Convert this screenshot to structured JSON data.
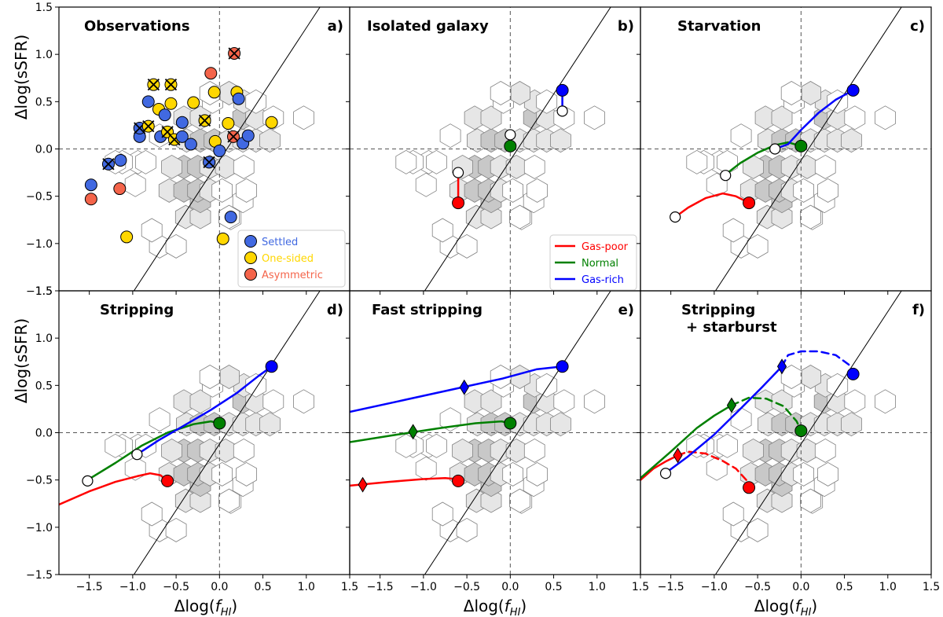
{
  "figure": {
    "ylabel": "Δlog(sSFR)",
    "xlabel_main": "Δlog(",
    "xlabel_f": "f",
    "xlabel_sub": "HI",
    "xlabel_close": ")"
  },
  "colors": {
    "settled": "#4169e1",
    "one_sided": "#ffd700",
    "asymmetric": "#f4644a",
    "gas_poor": "#ff0000",
    "normal": "#008000",
    "gas_rich": "#0000ff",
    "hex_edge": "#808080",
    "one_to_one_line": "#000000"
  },
  "chart_data": {
    "type": "scatter",
    "axes": {
      "xlim": [
        -1.85,
        1.5
      ],
      "ylim": [
        -1.5,
        1.5
      ],
      "xticks": [
        -1.5,
        -1.0,
        -0.5,
        0.0,
        0.5,
        1.0,
        1.5
      ],
      "yticks": [
        -1.5,
        -1.0,
        -0.5,
        0.0,
        0.5,
        1.0,
        1.5
      ]
    },
    "reference_lines": {
      "vertical_dashed_x": 0.0,
      "horizontal_dashed_y": 0.0,
      "diagonal": {
        "y_at_x0": -0.12,
        "slope": 1.4
      }
    },
    "hexbin_density": [
      {
        "x": -0.69,
        "y": -1.03,
        "s": 0
      },
      {
        "x": -0.5,
        "y": -1.03,
        "s": 0
      },
      {
        "x": 0.13,
        "y": -0.73,
        "s": 0
      },
      {
        "x": -0.78,
        "y": -0.86,
        "s": 0
      },
      {
        "x": -0.97,
        "y": -0.38,
        "s": 0
      },
      {
        "x": -0.39,
        "y": -0.72,
        "s": 1
      },
      {
        "x": -0.22,
        "y": -0.72,
        "s": 1
      },
      {
        "x": 0.11,
        "y": -0.72,
        "s": 0
      },
      {
        "x": -0.22,
        "y": -0.55,
        "s": 2
      },
      {
        "x": 0.27,
        "y": -0.55,
        "s": 0
      },
      {
        "x": -0.58,
        "y": -0.44,
        "s": 1
      },
      {
        "x": -0.41,
        "y": -0.44,
        "s": 2
      },
      {
        "x": -0.25,
        "y": -0.44,
        "s": 2
      },
      {
        "x": -0.11,
        "y": -0.44,
        "s": 1
      },
      {
        "x": 0.03,
        "y": -0.44,
        "s": 0
      },
      {
        "x": 0.31,
        "y": -0.44,
        "s": 0
      },
      {
        "x": -0.41,
        "y": -0.19,
        "s": 2
      },
      {
        "x": -0.25,
        "y": -0.19,
        "s": 2
      },
      {
        "x": -0.11,
        "y": -0.19,
        "s": 1
      },
      {
        "x": 0.07,
        "y": -0.19,
        "s": 1
      },
      {
        "x": 0.28,
        "y": -0.19,
        "s": 0
      },
      {
        "x": -0.55,
        "y": -0.19,
        "s": 1
      },
      {
        "x": -0.38,
        "y": 0.09,
        "s": 1
      },
      {
        "x": -0.22,
        "y": 0.09,
        "s": 2
      },
      {
        "x": -0.06,
        "y": 0.09,
        "s": 2
      },
      {
        "x": 0.11,
        "y": 0.09,
        "s": 1
      },
      {
        "x": 0.27,
        "y": 0.09,
        "s": 1
      },
      {
        "x": 0.42,
        "y": 0.09,
        "s": 1
      },
      {
        "x": -0.69,
        "y": 0.14,
        "s": 0
      },
      {
        "x": -0.41,
        "y": 0.33,
        "s": 1
      },
      {
        "x": -0.22,
        "y": 0.33,
        "s": 1
      },
      {
        "x": 0.27,
        "y": 0.33,
        "s": 2
      },
      {
        "x": 0.42,
        "y": 0.33,
        "s": 1
      },
      {
        "x": -0.08,
        "y": 0.5,
        "s": 0
      },
      {
        "x": 0.28,
        "y": 0.5,
        "s": 1
      },
      {
        "x": 0.42,
        "y": 0.5,
        "s": 0
      },
      {
        "x": 0.11,
        "y": 0.59,
        "s": 1
      },
      {
        "x": -0.11,
        "y": 0.59,
        "s": 0
      },
      {
        "x": 0.58,
        "y": 0.09,
        "s": 1
      },
      {
        "x": 0.62,
        "y": 0.33,
        "s": 0
      },
      {
        "x": 0.97,
        "y": 0.33,
        "s": 0
      },
      {
        "x": -0.94,
        "y": -0.14,
        "s": 0
      },
      {
        "x": -1.12,
        "y": -0.14,
        "s": 0
      },
      {
        "x": -1.2,
        "y": -0.14,
        "s": 0
      },
      {
        "x": -0.85,
        "y": -0.14,
        "s": 0
      }
    ],
    "panels": [
      {
        "id": "a",
        "title": "Observations",
        "label": "a)",
        "legend": [
          "Settled",
          "One-sided",
          "Asymmetric"
        ],
        "observations": [
          {
            "x": -1.48,
            "y": -0.38,
            "c": "settled"
          },
          {
            "x": -1.48,
            "y": -0.53,
            "c": "asymmetric"
          },
          {
            "x": -1.28,
            "y": -0.16,
            "c": "settled",
            "x_mark": true
          },
          {
            "x": -1.14,
            "y": -0.12,
            "c": "settled"
          },
          {
            "x": -1.15,
            "y": -0.42,
            "c": "asymmetric"
          },
          {
            "x": -1.07,
            "y": -0.93,
            "c": "one_sided"
          },
          {
            "x": -0.92,
            "y": 0.13,
            "c": "settled"
          },
          {
            "x": -0.92,
            "y": 0.22,
            "c": "settled",
            "x_mark": true
          },
          {
            "x": -0.82,
            "y": 0.5,
            "c": "settled"
          },
          {
            "x": -0.82,
            "y": 0.24,
            "c": "one_sided",
            "x_mark": true
          },
          {
            "x": -0.76,
            "y": 0.68,
            "c": "one_sided",
            "x_mark": true
          },
          {
            "x": -0.7,
            "y": 0.42,
            "c": "one_sided"
          },
          {
            "x": -0.68,
            "y": 0.13,
            "c": "settled"
          },
          {
            "x": -0.63,
            "y": 0.36,
            "c": "settled"
          },
          {
            "x": -0.6,
            "y": 0.18,
            "c": "one_sided",
            "x_mark": true
          },
          {
            "x": -0.56,
            "y": 0.68,
            "c": "one_sided",
            "x_mark": true
          },
          {
            "x": -0.56,
            "y": 0.48,
            "c": "one_sided"
          },
          {
            "x": -0.52,
            "y": 0.1,
            "c": "one_sided",
            "x_mark": true
          },
          {
            "x": -0.43,
            "y": 0.28,
            "c": "settled"
          },
          {
            "x": -0.43,
            "y": 0.13,
            "c": "settled"
          },
          {
            "x": -0.33,
            "y": 0.05,
            "c": "settled"
          },
          {
            "x": -0.3,
            "y": 0.49,
            "c": "one_sided"
          },
          {
            "x": -0.17,
            "y": 0.3,
            "c": "one_sided",
            "x_mark": true
          },
          {
            "x": -0.12,
            "y": -0.14,
            "c": "settled",
            "x_mark": true
          },
          {
            "x": -0.1,
            "y": 0.8,
            "c": "asymmetric"
          },
          {
            "x": -0.06,
            "y": 0.6,
            "c": "one_sided"
          },
          {
            "x": -0.05,
            "y": 0.08,
            "c": "one_sided"
          },
          {
            "x": 0.0,
            "y": -0.02,
            "c": "settled"
          },
          {
            "x": 0.04,
            "y": -0.95,
            "c": "one_sided"
          },
          {
            "x": 0.1,
            "y": 0.27,
            "c": "one_sided"
          },
          {
            "x": 0.13,
            "y": -0.72,
            "c": "settled"
          },
          {
            "x": 0.17,
            "y": 1.01,
            "c": "asymmetric",
            "x_mark": true
          },
          {
            "x": 0.16,
            "y": 0.13,
            "c": "asymmetric",
            "x_mark": true
          },
          {
            "x": 0.2,
            "y": 0.6,
            "c": "one_sided"
          },
          {
            "x": 0.22,
            "y": 0.53,
            "c": "settled"
          },
          {
            "x": 0.27,
            "y": 0.06,
            "c": "settled"
          },
          {
            "x": 0.33,
            "y": 0.14,
            "c": "settled"
          },
          {
            "x": 0.6,
            "y": 0.28,
            "c": "one_sided"
          }
        ]
      },
      {
        "id": "b",
        "title": "Isolated galaxy",
        "label": "b)",
        "legend": [
          "Gas-poor",
          "Normal",
          "Gas-rich"
        ],
        "tracks": [
          {
            "c": "gas_poor",
            "style": "solid",
            "x": [
              -0.6,
              -0.6
            ],
            "y": [
              -0.25,
              -0.57
            ]
          },
          {
            "c": "normal",
            "style": "solid",
            "x": [
              0.0,
              0.0
            ],
            "y": [
              0.15,
              0.03
            ]
          },
          {
            "c": "gas_rich",
            "style": "solid",
            "x": [
              0.6,
              0.6
            ],
            "y": [
              0.4,
              0.62
            ]
          }
        ],
        "start_points": [
          {
            "x": -0.6,
            "y": -0.57,
            "c": "gas_poor"
          },
          {
            "x": 0.0,
            "y": 0.03,
            "c": "normal"
          },
          {
            "x": 0.6,
            "y": 0.62,
            "c": "gas_rich"
          }
        ],
        "end_points": [
          {
            "x": -0.6,
            "y": -0.25
          },
          {
            "x": 0.0,
            "y": 0.15
          },
          {
            "x": 0.6,
            "y": 0.4
          }
        ]
      },
      {
        "id": "c",
        "title": "Starvation",
        "label": "c)",
        "tracks": [
          {
            "c": "gas_poor",
            "style": "solid",
            "x": [
              -1.45,
              -1.3,
              -1.1,
              -0.9,
              -0.75,
              -0.6
            ],
            "y": [
              -0.72,
              -0.62,
              -0.52,
              -0.47,
              -0.5,
              -0.57
            ]
          },
          {
            "c": "normal",
            "style": "solid",
            "x": [
              -0.87,
              -0.7,
              -0.5,
              -0.3,
              -0.15,
              0.0
            ],
            "y": [
              -0.27,
              -0.15,
              -0.04,
              0.04,
              0.07,
              0.03
            ]
          },
          {
            "c": "gas_rich",
            "style": "solid",
            "x": [
              -0.3,
              -0.15,
              0.0,
              0.2,
              0.4,
              0.6
            ],
            "y": [
              0.0,
              0.05,
              0.2,
              0.38,
              0.52,
              0.62
            ]
          }
        ],
        "start_points": [
          {
            "x": -0.6,
            "y": -0.57,
            "c": "gas_poor"
          },
          {
            "x": 0.0,
            "y": 0.03,
            "c": "normal"
          },
          {
            "x": 0.6,
            "y": 0.62,
            "c": "gas_rich"
          }
        ],
        "end_points": [
          {
            "x": -1.45,
            "y": -0.72
          },
          {
            "x": -0.87,
            "y": -0.28
          },
          {
            "x": -0.3,
            "y": 0.0
          }
        ]
      },
      {
        "id": "d",
        "title": "Stripping",
        "label": "d)",
        "tracks": [
          {
            "c": "gas_poor",
            "style": "solid",
            "x": [
              -1.85,
              -1.5,
              -1.2,
              -0.95,
              -0.8,
              -0.68,
              -0.6
            ],
            "y": [
              -0.76,
              -0.62,
              -0.52,
              -0.46,
              -0.43,
              -0.45,
              -0.51
            ]
          },
          {
            "c": "normal",
            "style": "solid",
            "x": [
              -1.52,
              -1.2,
              -0.9,
              -0.6,
              -0.3,
              -0.1,
              0.0
            ],
            "y": [
              -0.5,
              -0.32,
              -0.14,
              0.0,
              0.09,
              0.12,
              0.1
            ]
          },
          {
            "c": "gas_rich",
            "style": "solid",
            "x": [
              -0.95,
              -0.7,
              -0.4,
              -0.1,
              0.2,
              0.45,
              0.6
            ],
            "y": [
              -0.23,
              -0.08,
              0.08,
              0.24,
              0.42,
              0.6,
              0.7
            ]
          }
        ],
        "start_points": [
          {
            "x": -0.6,
            "y": -0.51,
            "c": "gas_poor"
          },
          {
            "x": 0.0,
            "y": 0.1,
            "c": "normal"
          },
          {
            "x": 0.6,
            "y": 0.7,
            "c": "gas_rich"
          }
        ],
        "end_points": [
          {
            "x": -1.52,
            "y": -0.51
          },
          {
            "x": -0.95,
            "y": -0.23
          }
        ]
      },
      {
        "id": "e",
        "title": "Fast stripping",
        "label": "e)",
        "tracks": [
          {
            "c": "gas_poor",
            "style": "solid",
            "x": [
              -1.85,
              -1.4,
              -1.0,
              -0.75,
              -0.62,
              -0.6
            ],
            "y": [
              -0.56,
              -0.52,
              -0.49,
              -0.48,
              -0.49,
              -0.51
            ]
          },
          {
            "c": "normal",
            "style": "solid",
            "x": [
              -1.85,
              -1.3,
              -0.8,
              -0.4,
              -0.1,
              0.0
            ],
            "y": [
              -0.1,
              -0.02,
              0.05,
              0.1,
              0.12,
              0.1
            ]
          },
          {
            "c": "gas_rich",
            "style": "solid",
            "x": [
              -1.85,
              -1.2,
              -0.6,
              -0.1,
              0.3,
              0.6
            ],
            "y": [
              0.22,
              0.35,
              0.47,
              0.57,
              0.67,
              0.7
            ]
          }
        ],
        "start_points": [
          {
            "x": -0.6,
            "y": -0.51,
            "c": "gas_poor"
          },
          {
            "x": 0.0,
            "y": 0.1,
            "c": "normal"
          },
          {
            "x": 0.6,
            "y": 0.7,
            "c": "gas_rich"
          }
        ],
        "diamonds": [
          {
            "x": -1.7,
            "y": -0.55,
            "c": "gas_poor"
          },
          {
            "x": -1.12,
            "y": 0.01,
            "c": "normal"
          },
          {
            "x": -0.53,
            "y": 0.48,
            "c": "gas_rich"
          }
        ]
      },
      {
        "id": "f",
        "title": "Stripping",
        "title2": "+ starburst",
        "label": "f)",
        "tracks": [
          {
            "c": "gas_poor",
            "style": "solid",
            "x": [
              -1.85,
              -1.7,
              -1.55,
              -1.42
            ],
            "y": [
              -0.5,
              -0.38,
              -0.3,
              -0.24
            ]
          },
          {
            "c": "gas_poor",
            "style": "dashed",
            "x": [
              -1.42,
              -1.3,
              -1.1,
              -0.9,
              -0.75,
              -0.63,
              -0.6
            ],
            "y": [
              -0.24,
              -0.2,
              -0.22,
              -0.3,
              -0.38,
              -0.5,
              -0.58
            ]
          },
          {
            "c": "normal",
            "style": "solid",
            "x": [
              -1.85,
              -1.5,
              -1.2,
              -1.0,
              -0.8
            ],
            "y": [
              -0.48,
              -0.2,
              0.05,
              0.18,
              0.29
            ]
          },
          {
            "c": "normal",
            "style": "dashed",
            "x": [
              -0.8,
              -0.6,
              -0.4,
              -0.2,
              -0.05,
              0.0
            ],
            "y": [
              0.29,
              0.37,
              0.36,
              0.28,
              0.12,
              0.02
            ]
          },
          {
            "c": "gas_rich",
            "style": "solid",
            "x": [
              -1.55,
              -1.3,
              -1.0,
              -0.7,
              -0.45,
              -0.22
            ],
            "y": [
              -0.42,
              -0.25,
              -0.02,
              0.25,
              0.48,
              0.7
            ]
          },
          {
            "c": "gas_rich",
            "style": "dashed",
            "x": [
              -0.22,
              -0.15,
              0.0,
              0.2,
              0.4,
              0.55,
              0.6
            ],
            "y": [
              0.7,
              0.82,
              0.86,
              0.86,
              0.82,
              0.72,
              0.62
            ]
          }
        ],
        "start_points": [
          {
            "x": -0.6,
            "y": -0.58,
            "c": "gas_poor"
          },
          {
            "x": 0.0,
            "y": 0.02,
            "c": "normal"
          },
          {
            "x": 0.6,
            "y": 0.62,
            "c": "gas_rich"
          }
        ],
        "end_points": [
          {
            "x": -1.56,
            "y": -0.43
          }
        ],
        "diamonds": [
          {
            "x": -1.42,
            "y": -0.24,
            "c": "gas_poor"
          },
          {
            "x": -0.8,
            "y": 0.29,
            "c": "normal"
          },
          {
            "x": -0.22,
            "y": 0.7,
            "c": "gas_rich"
          }
        ]
      }
    ]
  }
}
